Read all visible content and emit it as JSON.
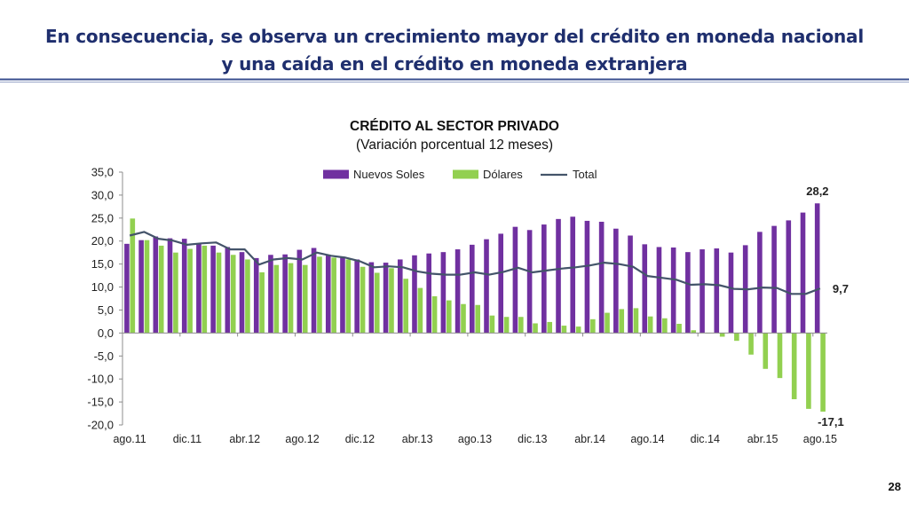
{
  "slide": {
    "title_line1": "En consecuencia, se observa un crecimiento mayor del crédito en moneda nacional",
    "title_line2": "y una caída en el crédito en moneda extranjera",
    "page_number": "28",
    "colors": {
      "title": "#1f2f6e",
      "rule": "#3a4f8f"
    }
  },
  "chart_data": {
    "type": "bar",
    "title": "CRÉDITO AL SECTOR PRIVADO",
    "subtitle": "(Variación porcentual 12 meses)",
    "ylim": [
      -20,
      35
    ],
    "yticks": [
      "35,0",
      "30,0",
      "25,0",
      "20,0",
      "15,0",
      "10,0",
      "5,0",
      "0,0",
      "-5,0",
      "-10,0",
      "-15,0",
      "-20,0"
    ],
    "ytick_values": [
      35,
      30,
      25,
      20,
      15,
      10,
      5,
      0,
      -5,
      -10,
      -15,
      -20
    ],
    "grid": false,
    "legend_position": "top",
    "categories": [
      "ago.11",
      "sep.11",
      "oct.11",
      "nov.11",
      "dic.11",
      "ene.12",
      "feb.12",
      "mar.12",
      "abr.12",
      "may.12",
      "jun.12",
      "jul.12",
      "ago.12",
      "sep.12",
      "oct.12",
      "nov.12",
      "dic.12",
      "ene.13",
      "feb.13",
      "mar.13",
      "abr.13",
      "may.13",
      "jun.13",
      "jul.13",
      "ago.13",
      "sep.13",
      "oct.13",
      "nov.13",
      "dic.13",
      "ene.14",
      "feb.14",
      "mar.14",
      "abr.14",
      "may.14",
      "jun.14",
      "jul.14",
      "ago.14",
      "sep.14",
      "oct.14",
      "nov.14",
      "dic.14",
      "ene.15",
      "feb.15",
      "mar.15",
      "abr.15",
      "may.15",
      "jun.15",
      "jul.15",
      "ago.15"
    ],
    "x_tick_labels": [
      "ago.11",
      "dic.11",
      "abr.12",
      "ago.12",
      "dic.12",
      "abr.13",
      "ago.13",
      "dic.13",
      "abr.14",
      "ago.14",
      "dic.14",
      "abr.15",
      "ago.15"
    ],
    "series": [
      {
        "name": "Nuevos Soles",
        "kind": "bar",
        "color": "#7030a0",
        "values": [
          19.4,
          20.2,
          21.0,
          20.6,
          20.5,
          19.5,
          19.0,
          18.7,
          17.6,
          16.3,
          17.0,
          17.1,
          18.1,
          18.5,
          17.0,
          16.4,
          16.0,
          15.4,
          15.3,
          16.0,
          16.9,
          17.3,
          17.6,
          18.2,
          19.2,
          20.4,
          21.6,
          23.1,
          22.4,
          23.6,
          24.8,
          25.3,
          24.4,
          24.2,
          22.7,
          21.2,
          19.3,
          18.7,
          18.6,
          17.6,
          18.2,
          18.4,
          17.5,
          19.1,
          22.0,
          23.3,
          24.5,
          26.2,
          28.2
        ]
      },
      {
        "name": "Dólares",
        "kind": "bar",
        "color": "#92d050",
        "values": [
          24.9,
          20.2,
          19.0,
          17.5,
          18.3,
          19.0,
          17.5,
          17.0,
          16.0,
          13.2,
          14.8,
          15.2,
          14.8,
          16.6,
          16.4,
          16.0,
          14.4,
          13.1,
          14.1,
          11.8,
          9.8,
          8.0,
          7.1,
          6.3,
          6.1,
          3.8,
          3.5,
          3.5,
          2.1,
          2.4,
          1.6,
          1.4,
          3.0,
          4.4,
          5.2,
          5.4,
          3.6,
          3.2,
          2.0,
          0.6,
          0.0,
          -0.8,
          -1.7,
          -4.7,
          -7.8,
          -9.8,
          -14.4,
          -16.5,
          -17.1
        ]
      },
      {
        "name": "Total",
        "kind": "line",
        "color": "#44546a",
        "values": [
          21.2,
          22.0,
          20.5,
          20.1,
          19.2,
          19.5,
          19.7,
          18.2,
          18.2,
          14.9,
          16.0,
          16.3,
          16.0,
          17.5,
          16.8,
          16.4,
          15.6,
          14.3,
          14.5,
          14.3,
          13.4,
          12.9,
          12.7,
          12.7,
          13.2,
          12.7,
          13.3,
          14.2,
          13.2,
          13.6,
          14.0,
          14.3,
          14.7,
          15.3,
          15.0,
          14.4,
          12.4,
          12.0,
          11.6,
          10.5,
          10.6,
          10.4,
          9.6,
          9.5,
          9.9,
          9.8,
          8.5,
          8.5,
          9.7
        ]
      }
    ],
    "annotations": [
      {
        "text": "28,2",
        "series": "Nuevos Soles",
        "index": 48
      },
      {
        "text": "9,7",
        "series": "Total",
        "index": 48
      },
      {
        "text": "-17,1",
        "series": "Dólares",
        "index": 48
      }
    ]
  }
}
